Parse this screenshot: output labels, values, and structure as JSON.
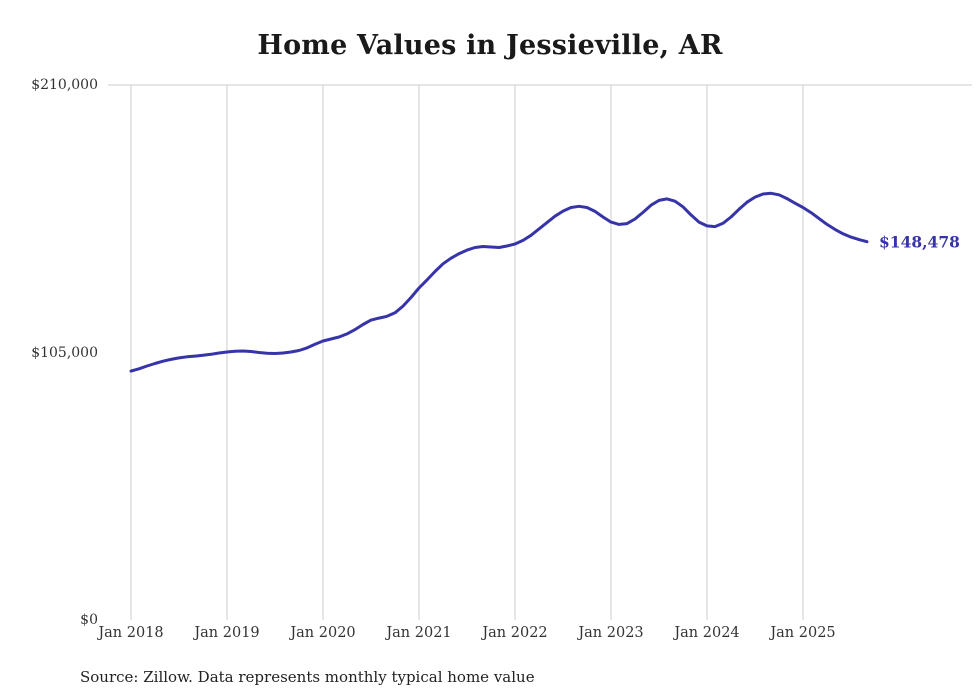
{
  "title": "Home Values in Jessieville, AR",
  "source_note": "Source: Zillow. Data represents monthly typical home value",
  "end_label": "$148,478",
  "colors": {
    "line": "#3733a8",
    "grid": "#cccccc",
    "axis_text": "#333333",
    "title_text": "#1a1a1a"
  },
  "chart_data": {
    "type": "line",
    "title": "Home Values in Jessieville, AR",
    "xlabel": "",
    "ylabel": "",
    "ylim": [
      0,
      210000
    ],
    "y_ticks": [
      0,
      105000,
      210000
    ],
    "y_tick_labels": [
      "$0",
      "$105,000",
      "$210,000"
    ],
    "x_tick_labels": [
      "Jan 2018",
      "Jan 2019",
      "Jan 2020",
      "Jan 2021",
      "Jan 2022",
      "Jan 2023",
      "Jan 2024",
      "Jan 2025"
    ],
    "x_unit": "month",
    "x_range": [
      "2018-01",
      "2025-09"
    ],
    "grid": "vertical",
    "legend": "none",
    "last_value": 148478,
    "series": [
      {
        "name": "Typical home value",
        "values": [
          97700,
          98600,
          99700,
          100700,
          101600,
          102300,
          102900,
          103300,
          103600,
          103900,
          104300,
          104800,
          105200,
          105500,
          105600,
          105400,
          105000,
          104700,
          104600,
          104800,
          105200,
          105800,
          106800,
          108200,
          109500,
          110300,
          111100,
          112300,
          114000,
          116000,
          117700,
          118500,
          119200,
          120600,
          123200,
          126600,
          130300,
          133500,
          136800,
          139800,
          142000,
          143800,
          145200,
          146200,
          146600,
          146400,
          146200,
          146800,
          147600,
          149000,
          151000,
          153500,
          156000,
          158500,
          160500,
          161900,
          162400,
          161900,
          160400,
          158200,
          156200,
          155300,
          155600,
          157400,
          160000,
          162800,
          164700,
          165300,
          164400,
          162200,
          159000,
          156200,
          154700,
          154400,
          155700,
          158200,
          161200,
          164000,
          166000,
          167200,
          167500,
          166900,
          165400,
          163600,
          161900,
          159900,
          157600,
          155300,
          153300,
          151600,
          150300,
          149300,
          148478
        ]
      }
    ]
  }
}
